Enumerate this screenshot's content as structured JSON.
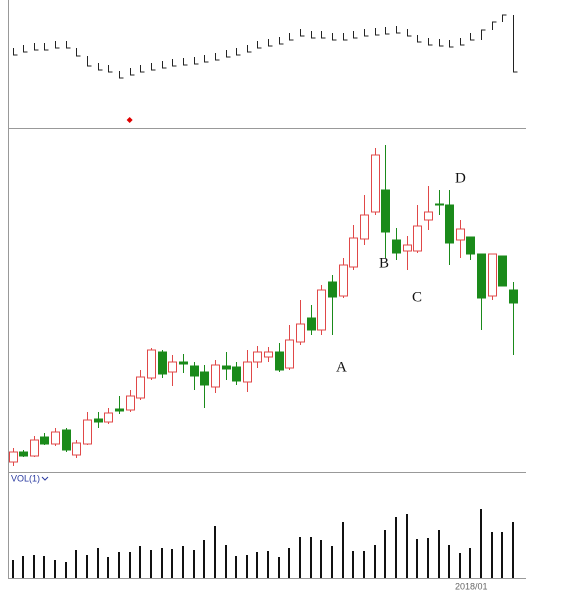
{
  "chart_data": {
    "type": "candlestick",
    "up_color": "#e04848",
    "down_color": "#1a8a1a",
    "open": [
      10,
      20,
      16,
      35,
      28,
      42,
      17,
      28,
      53,
      50,
      63,
      62,
      74,
      94,
      120,
      100,
      110,
      106,
      100,
      85,
      106,
      105,
      90,
      110,
      115,
      120,
      104,
      130,
      154,
      142,
      190,
      176,
      205,
      233,
      260,
      282,
      232,
      221,
      221,
      252,
      268,
      267,
      232,
      235,
      218,
      176,
      216,
      182
    ],
    "high": [
      24,
      22,
      36,
      39,
      44,
      44,
      32,
      60,
      60,
      64,
      76,
      82,
      102,
      124,
      122,
      117,
      118,
      110,
      107,
      112,
      120,
      110,
      122,
      126,
      125,
      129,
      147,
      172,
      167,
      187,
      197,
      214,
      247,
      277,
      324,
      327,
      244,
      236,
      267,
      286,
      282,
      282,
      252,
      235,
      218,
      218,
      216,
      190
    ],
    "low": [
      6,
      15,
      15,
      27,
      26,
      20,
      14,
      27,
      44,
      48,
      58,
      60,
      72,
      92,
      94,
      86,
      99,
      82,
      64,
      79,
      92,
      87,
      80,
      104,
      110,
      100,
      102,
      127,
      137,
      137,
      137,
      174,
      202,
      227,
      257,
      214,
      212,
      202,
      219,
      242,
      257,
      207,
      214,
      212,
      142,
      172,
      186,
      117
    ],
    "close": [
      20,
      16,
      32,
      28,
      40,
      22,
      29,
      52,
      50,
      59,
      61,
      76,
      95,
      122,
      98,
      110,
      108,
      96,
      87,
      107,
      103,
      91,
      110,
      120,
      120,
      102,
      132,
      148,
      142,
      182,
      175,
      207,
      234,
      257,
      317,
      240,
      219,
      227,
      246,
      260,
      267,
      229,
      243,
      218,
      174,
      218,
      186,
      169
    ],
    "ylim": [
      0,
      344
    ],
    "indicator": {
      "values": [
        73,
        76,
        78,
        78,
        80,
        80,
        72,
        62,
        58,
        56,
        50,
        53,
        56,
        58,
        60,
        62,
        63,
        64,
        66,
        68,
        71,
        73,
        76,
        80,
        82,
        84,
        88,
        92,
        90,
        90,
        88,
        88,
        90,
        92,
        93,
        94,
        95,
        92,
        86,
        83,
        82,
        81,
        83,
        88,
        98,
        106,
        113,
        56
      ],
      "ylim": [
        0,
        128
      ],
      "color": "#222222",
      "signals": [
        {
          "index": 11,
          "value": 8,
          "color": "#e00000"
        }
      ]
    },
    "volume": {
      "label": "VOL(1)",
      "values": [
        18,
        22,
        23,
        22,
        18,
        16,
        28,
        23,
        30,
        21,
        26,
        26,
        32,
        28,
        30,
        29,
        32,
        28,
        38,
        52,
        33,
        22,
        23,
        26,
        27,
        21,
        30,
        41,
        41,
        38,
        32,
        56,
        27,
        27,
        33,
        48,
        61,
        64,
        39,
        40,
        48,
        33,
        25,
        30,
        69,
        46,
        46,
        56
      ],
      "ylim": [
        0,
        106
      ],
      "color": "#111111"
    },
    "x_label": "2018/01",
    "annotations": [
      "A",
      "B",
      "C",
      "D"
    ]
  }
}
